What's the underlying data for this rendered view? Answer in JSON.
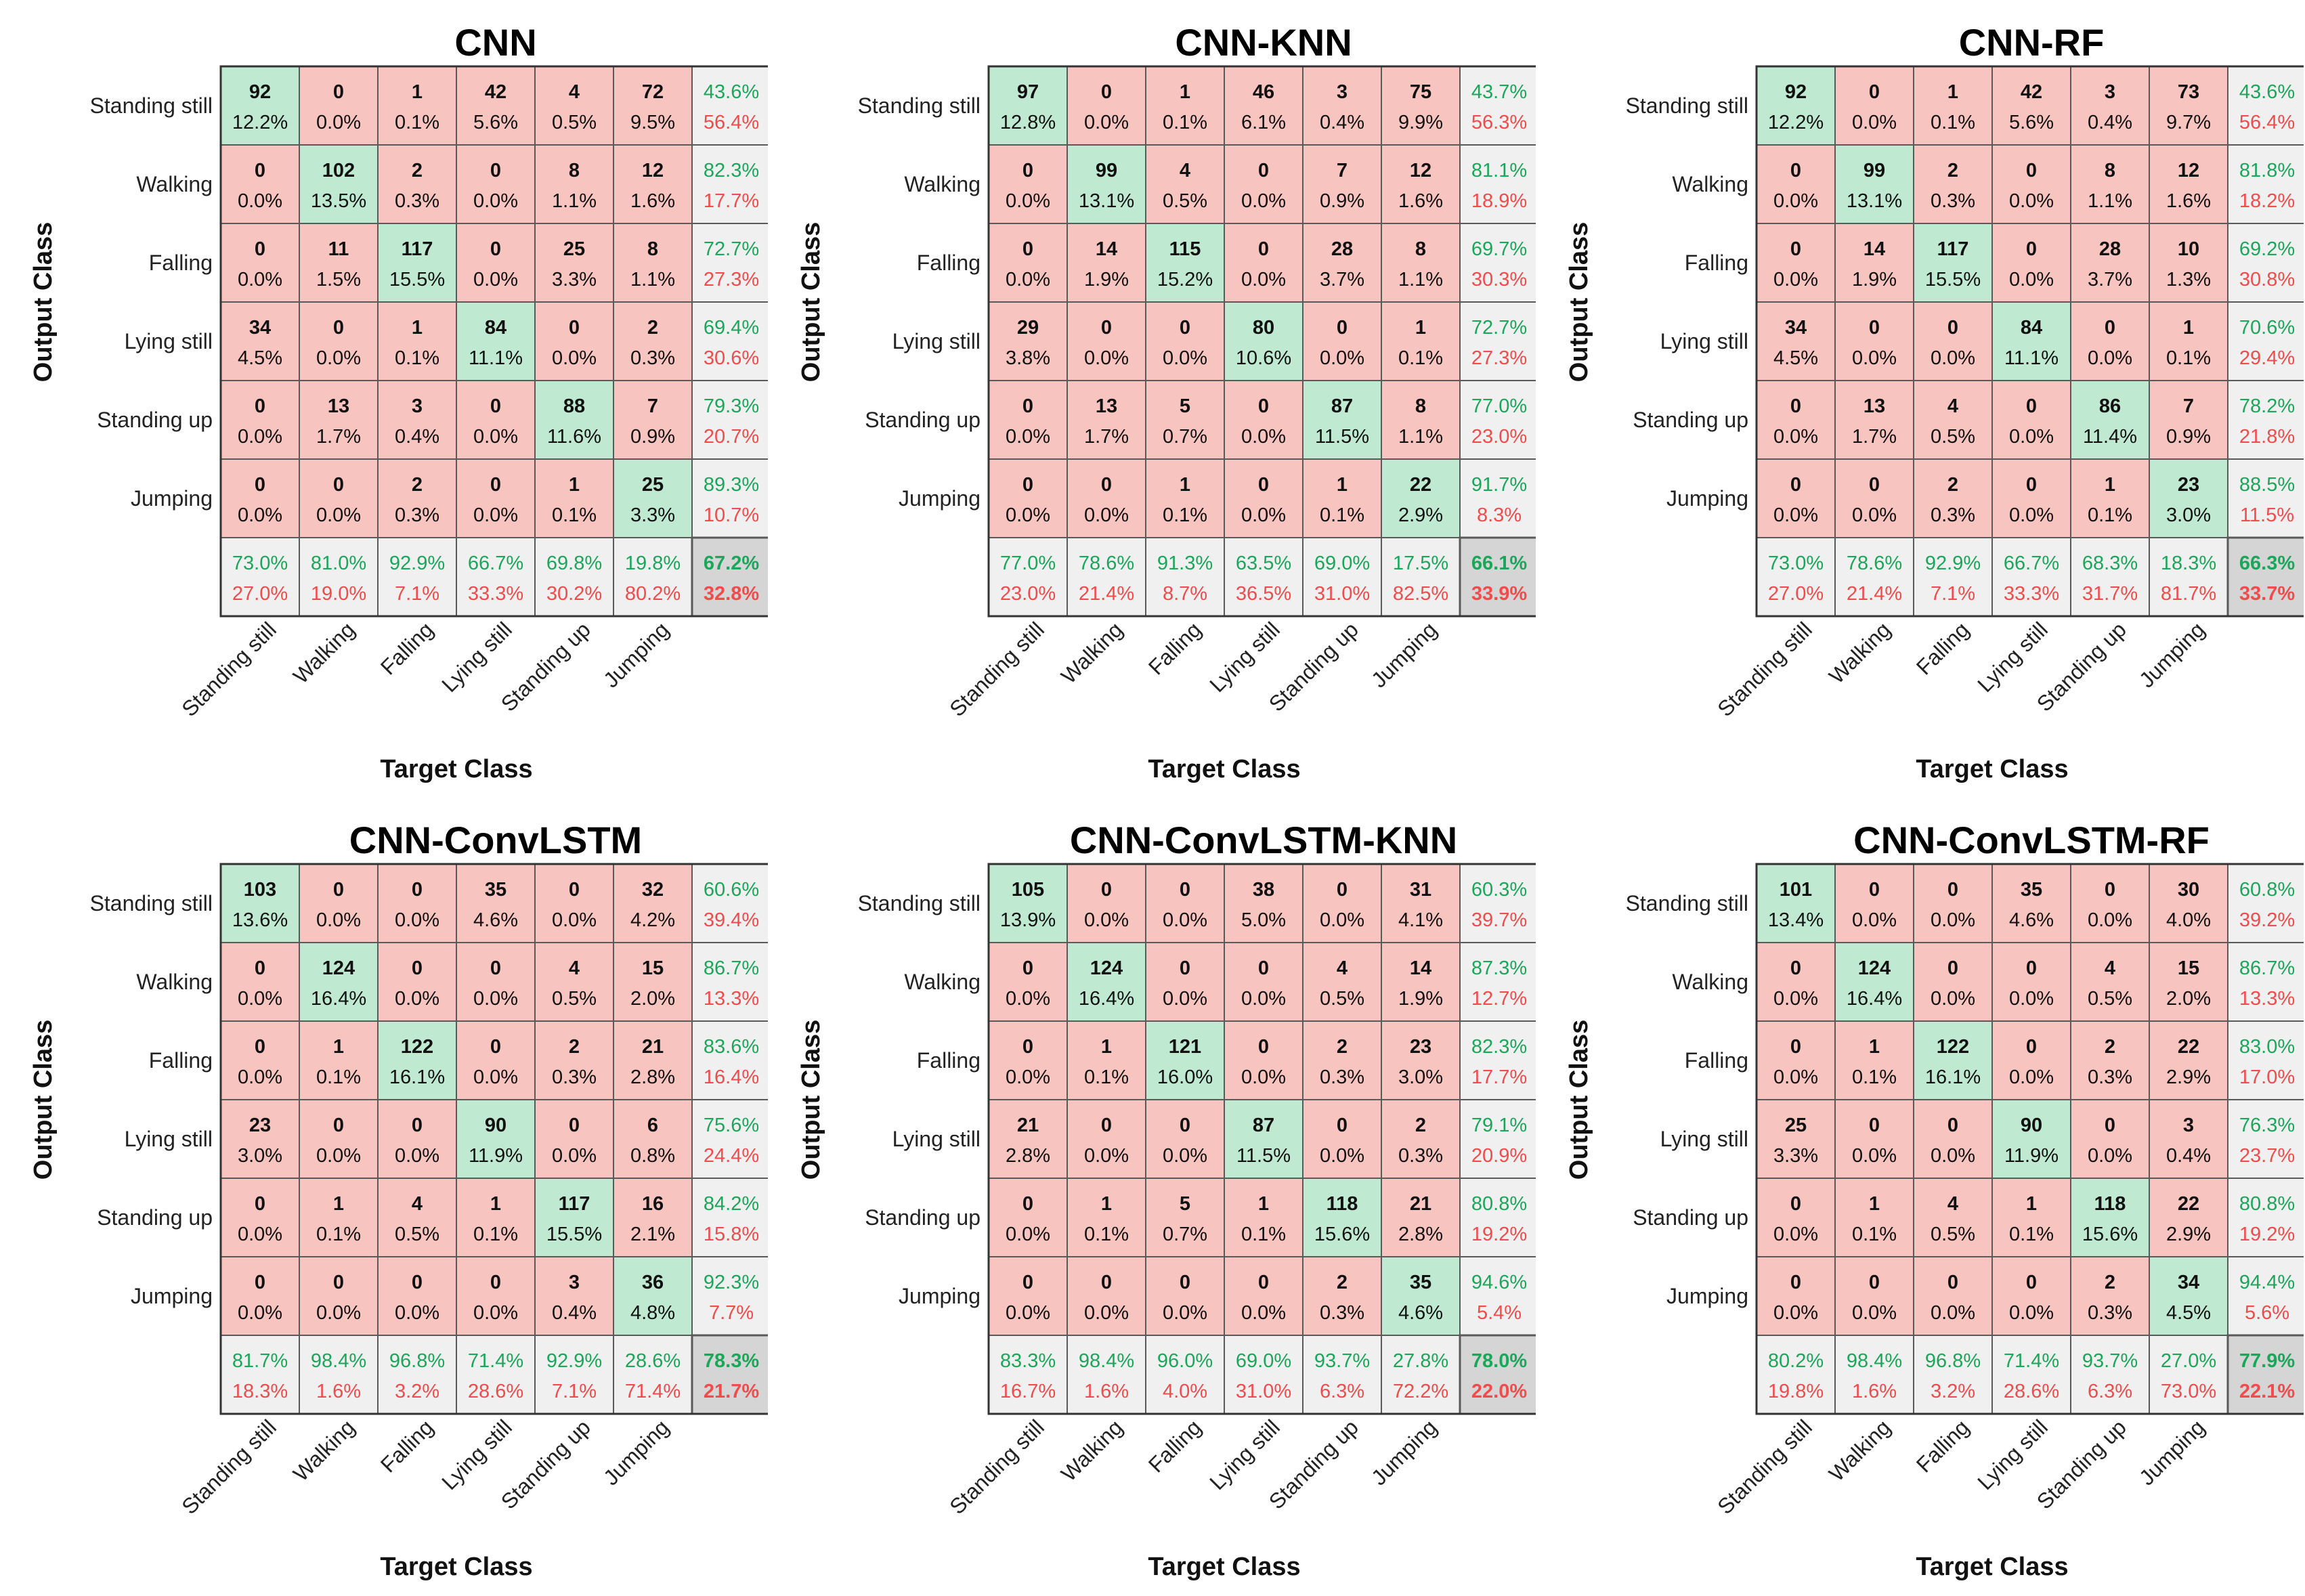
{
  "chart_data": {
    "type": "heatmap",
    "row_axis_label": "Output Class",
    "col_axis_label": "Target Class",
    "classes": [
      "Standing still",
      "Walking",
      "Falling",
      "Lying still",
      "Standing up",
      "Jumping"
    ],
    "colors": {
      "correct": "#bfead1",
      "incorrect": "#f8c4c0",
      "summary": "#f0f0f0",
      "overall": "#d5d5d5",
      "grid": "#5a5a5a",
      "percent_correct": "#1aa75a",
      "percent_incorrect": "#f24b4b",
      "text": "#111111"
    },
    "matrices": [
      {
        "title": "CNN",
        "counts": [
          [
            92,
            0,
            1,
            42,
            4,
            72
          ],
          [
            0,
            102,
            2,
            0,
            8,
            12
          ],
          [
            0,
            11,
            117,
            0,
            25,
            8
          ],
          [
            34,
            0,
            1,
            84,
            0,
            2
          ],
          [
            0,
            13,
            3,
            0,
            88,
            7
          ],
          [
            0,
            0,
            2,
            0,
            1,
            25
          ]
        ],
        "cell_pct": [
          [
            "12.2%",
            "0.0%",
            "0.1%",
            "5.6%",
            "0.5%",
            "9.5%"
          ],
          [
            "0.0%",
            "13.5%",
            "0.3%",
            "0.0%",
            "1.1%",
            "1.6%"
          ],
          [
            "0.0%",
            "1.5%",
            "15.5%",
            "0.0%",
            "3.3%",
            "1.1%"
          ],
          [
            "4.5%",
            "0.0%",
            "0.1%",
            "11.1%",
            "0.0%",
            "0.3%"
          ],
          [
            "0.0%",
            "1.7%",
            "0.4%",
            "0.0%",
            "11.6%",
            "0.9%"
          ],
          [
            "0.0%",
            "0.0%",
            "0.3%",
            "0.0%",
            "0.1%",
            "3.3%"
          ]
        ],
        "row_summary": [
          [
            "43.6%",
            "56.4%"
          ],
          [
            "82.3%",
            "17.7%"
          ],
          [
            "72.7%",
            "27.3%"
          ],
          [
            "69.4%",
            "30.6%"
          ],
          [
            "79.3%",
            "20.7%"
          ],
          [
            "89.3%",
            "10.7%"
          ]
        ],
        "col_summary": [
          [
            "73.0%",
            "27.0%"
          ],
          [
            "81.0%",
            "19.0%"
          ],
          [
            "92.9%",
            "7.1%"
          ],
          [
            "66.7%",
            "33.3%"
          ],
          [
            "69.8%",
            "30.2%"
          ],
          [
            "19.8%",
            "80.2%"
          ]
        ],
        "overall": [
          "67.2%",
          "32.8%"
        ]
      },
      {
        "title": "CNN-KNN",
        "counts": [
          [
            97,
            0,
            1,
            46,
            3,
            75
          ],
          [
            0,
            99,
            4,
            0,
            7,
            12
          ],
          [
            0,
            14,
            115,
            0,
            28,
            8
          ],
          [
            29,
            0,
            0,
            80,
            0,
            1
          ],
          [
            0,
            13,
            5,
            0,
            87,
            8
          ],
          [
            0,
            0,
            1,
            0,
            1,
            22
          ]
        ],
        "cell_pct": [
          [
            "12.8%",
            "0.0%",
            "0.1%",
            "6.1%",
            "0.4%",
            "9.9%"
          ],
          [
            "0.0%",
            "13.1%",
            "0.5%",
            "0.0%",
            "0.9%",
            "1.6%"
          ],
          [
            "0.0%",
            "1.9%",
            "15.2%",
            "0.0%",
            "3.7%",
            "1.1%"
          ],
          [
            "3.8%",
            "0.0%",
            "0.0%",
            "10.6%",
            "0.0%",
            "0.1%"
          ],
          [
            "0.0%",
            "1.7%",
            "0.7%",
            "0.0%",
            "11.5%",
            "1.1%"
          ],
          [
            "0.0%",
            "0.0%",
            "0.1%",
            "0.0%",
            "0.1%",
            "2.9%"
          ]
        ],
        "row_summary": [
          [
            "43.7%",
            "56.3%"
          ],
          [
            "81.1%",
            "18.9%"
          ],
          [
            "69.7%",
            "30.3%"
          ],
          [
            "72.7%",
            "27.3%"
          ],
          [
            "77.0%",
            "23.0%"
          ],
          [
            "91.7%",
            "8.3%"
          ]
        ],
        "col_summary": [
          [
            "77.0%",
            "23.0%"
          ],
          [
            "78.6%",
            "21.4%"
          ],
          [
            "91.3%",
            "8.7%"
          ],
          [
            "63.5%",
            "36.5%"
          ],
          [
            "69.0%",
            "31.0%"
          ],
          [
            "17.5%",
            "82.5%"
          ]
        ],
        "overall": [
          "66.1%",
          "33.9%"
        ]
      },
      {
        "title": "CNN-RF",
        "counts": [
          [
            92,
            0,
            1,
            42,
            3,
            73
          ],
          [
            0,
            99,
            2,
            0,
            8,
            12
          ],
          [
            0,
            14,
            117,
            0,
            28,
            10
          ],
          [
            34,
            0,
            0,
            84,
            0,
            1
          ],
          [
            0,
            13,
            4,
            0,
            86,
            7
          ],
          [
            0,
            0,
            2,
            0,
            1,
            23
          ]
        ],
        "cell_pct": [
          [
            "12.2%",
            "0.0%",
            "0.1%",
            "5.6%",
            "0.4%",
            "9.7%"
          ],
          [
            "0.0%",
            "13.1%",
            "0.3%",
            "0.0%",
            "1.1%",
            "1.6%"
          ],
          [
            "0.0%",
            "1.9%",
            "15.5%",
            "0.0%",
            "3.7%",
            "1.3%"
          ],
          [
            "4.5%",
            "0.0%",
            "0.0%",
            "11.1%",
            "0.0%",
            "0.1%"
          ],
          [
            "0.0%",
            "1.7%",
            "0.5%",
            "0.0%",
            "11.4%",
            "0.9%"
          ],
          [
            "0.0%",
            "0.0%",
            "0.3%",
            "0.0%",
            "0.1%",
            "3.0%"
          ]
        ],
        "row_summary": [
          [
            "43.6%",
            "56.4%"
          ],
          [
            "81.8%",
            "18.2%"
          ],
          [
            "69.2%",
            "30.8%"
          ],
          [
            "70.6%",
            "29.4%"
          ],
          [
            "78.2%",
            "21.8%"
          ],
          [
            "88.5%",
            "11.5%"
          ]
        ],
        "col_summary": [
          [
            "73.0%",
            "27.0%"
          ],
          [
            "78.6%",
            "21.4%"
          ],
          [
            "92.9%",
            "7.1%"
          ],
          [
            "66.7%",
            "33.3%"
          ],
          [
            "68.3%",
            "31.7%"
          ],
          [
            "18.3%",
            "81.7%"
          ]
        ],
        "overall": [
          "66.3%",
          "33.7%"
        ]
      },
      {
        "title": "CNN-ConvLSTM",
        "counts": [
          [
            103,
            0,
            0,
            35,
            0,
            32
          ],
          [
            0,
            124,
            0,
            0,
            4,
            15
          ],
          [
            0,
            1,
            122,
            0,
            2,
            21
          ],
          [
            23,
            0,
            0,
            90,
            0,
            6
          ],
          [
            0,
            1,
            4,
            1,
            117,
            16
          ],
          [
            0,
            0,
            0,
            0,
            3,
            36
          ]
        ],
        "cell_pct": [
          [
            "13.6%",
            "0.0%",
            "0.0%",
            "4.6%",
            "0.0%",
            "4.2%"
          ],
          [
            "0.0%",
            "16.4%",
            "0.0%",
            "0.0%",
            "0.5%",
            "2.0%"
          ],
          [
            "0.0%",
            "0.1%",
            "16.1%",
            "0.0%",
            "0.3%",
            "2.8%"
          ],
          [
            "3.0%",
            "0.0%",
            "0.0%",
            "11.9%",
            "0.0%",
            "0.8%"
          ],
          [
            "0.0%",
            "0.1%",
            "0.5%",
            "0.1%",
            "15.5%",
            "2.1%"
          ],
          [
            "0.0%",
            "0.0%",
            "0.0%",
            "0.0%",
            "0.4%",
            "4.8%"
          ]
        ],
        "row_summary": [
          [
            "60.6%",
            "39.4%"
          ],
          [
            "86.7%",
            "13.3%"
          ],
          [
            "83.6%",
            "16.4%"
          ],
          [
            "75.6%",
            "24.4%"
          ],
          [
            "84.2%",
            "15.8%"
          ],
          [
            "92.3%",
            "7.7%"
          ]
        ],
        "col_summary": [
          [
            "81.7%",
            "18.3%"
          ],
          [
            "98.4%",
            "1.6%"
          ],
          [
            "96.8%",
            "3.2%"
          ],
          [
            "71.4%",
            "28.6%"
          ],
          [
            "92.9%",
            "7.1%"
          ],
          [
            "28.6%",
            "71.4%"
          ]
        ],
        "overall": [
          "78.3%",
          "21.7%"
        ]
      },
      {
        "title": "CNN-ConvLSTM-KNN",
        "counts": [
          [
            105,
            0,
            0,
            38,
            0,
            31
          ],
          [
            0,
            124,
            0,
            0,
            4,
            14
          ],
          [
            0,
            1,
            121,
            0,
            2,
            23
          ],
          [
            21,
            0,
            0,
            87,
            0,
            2
          ],
          [
            0,
            1,
            5,
            1,
            118,
            21
          ],
          [
            0,
            0,
            0,
            0,
            2,
            35
          ]
        ],
        "cell_pct": [
          [
            "13.9%",
            "0.0%",
            "0.0%",
            "5.0%",
            "0.0%",
            "4.1%"
          ],
          [
            "0.0%",
            "16.4%",
            "0.0%",
            "0.0%",
            "0.5%",
            "1.9%"
          ],
          [
            "0.0%",
            "0.1%",
            "16.0%",
            "0.0%",
            "0.3%",
            "3.0%"
          ],
          [
            "2.8%",
            "0.0%",
            "0.0%",
            "11.5%",
            "0.0%",
            "0.3%"
          ],
          [
            "0.0%",
            "0.1%",
            "0.7%",
            "0.1%",
            "15.6%",
            "2.8%"
          ],
          [
            "0.0%",
            "0.0%",
            "0.0%",
            "0.0%",
            "0.3%",
            "4.6%"
          ]
        ],
        "row_summary": [
          [
            "60.3%",
            "39.7%"
          ],
          [
            "87.3%",
            "12.7%"
          ],
          [
            "82.3%",
            "17.7%"
          ],
          [
            "79.1%",
            "20.9%"
          ],
          [
            "80.8%",
            "19.2%"
          ],
          [
            "94.6%",
            "5.4%"
          ]
        ],
        "col_summary": [
          [
            "83.3%",
            "16.7%"
          ],
          [
            "98.4%",
            "1.6%"
          ],
          [
            "96.0%",
            "4.0%"
          ],
          [
            "69.0%",
            "31.0%"
          ],
          [
            "93.7%",
            "6.3%"
          ],
          [
            "27.8%",
            "72.2%"
          ]
        ],
        "overall": [
          "78.0%",
          "22.0%"
        ]
      },
      {
        "title": "CNN-ConvLSTM-RF",
        "counts": [
          [
            101,
            0,
            0,
            35,
            0,
            30
          ],
          [
            0,
            124,
            0,
            0,
            4,
            15
          ],
          [
            0,
            1,
            122,
            0,
            2,
            22
          ],
          [
            25,
            0,
            0,
            90,
            0,
            3
          ],
          [
            0,
            1,
            4,
            1,
            118,
            22
          ],
          [
            0,
            0,
            0,
            0,
            2,
            34
          ]
        ],
        "cell_pct": [
          [
            "13.4%",
            "0.0%",
            "0.0%",
            "4.6%",
            "0.0%",
            "4.0%"
          ],
          [
            "0.0%",
            "16.4%",
            "0.0%",
            "0.0%",
            "0.5%",
            "2.0%"
          ],
          [
            "0.0%",
            "0.1%",
            "16.1%",
            "0.0%",
            "0.3%",
            "2.9%"
          ],
          [
            "3.3%",
            "0.0%",
            "0.0%",
            "11.9%",
            "0.0%",
            "0.4%"
          ],
          [
            "0.0%",
            "0.1%",
            "0.5%",
            "0.1%",
            "15.6%",
            "2.9%"
          ],
          [
            "0.0%",
            "0.0%",
            "0.0%",
            "0.0%",
            "0.3%",
            "4.5%"
          ]
        ],
        "row_summary": [
          [
            "60.8%",
            "39.2%"
          ],
          [
            "86.7%",
            "13.3%"
          ],
          [
            "83.0%",
            "17.0%"
          ],
          [
            "76.3%",
            "23.7%"
          ],
          [
            "80.8%",
            "19.2%"
          ],
          [
            "94.4%",
            "5.6%"
          ]
        ],
        "col_summary": [
          [
            "80.2%",
            "19.8%"
          ],
          [
            "98.4%",
            "1.6%"
          ],
          [
            "96.8%",
            "3.2%"
          ],
          [
            "71.4%",
            "28.6%"
          ],
          [
            "93.7%",
            "6.3%"
          ],
          [
            "27.0%",
            "73.0%"
          ]
        ],
        "overall": [
          "77.9%",
          "22.1%"
        ]
      }
    ]
  }
}
